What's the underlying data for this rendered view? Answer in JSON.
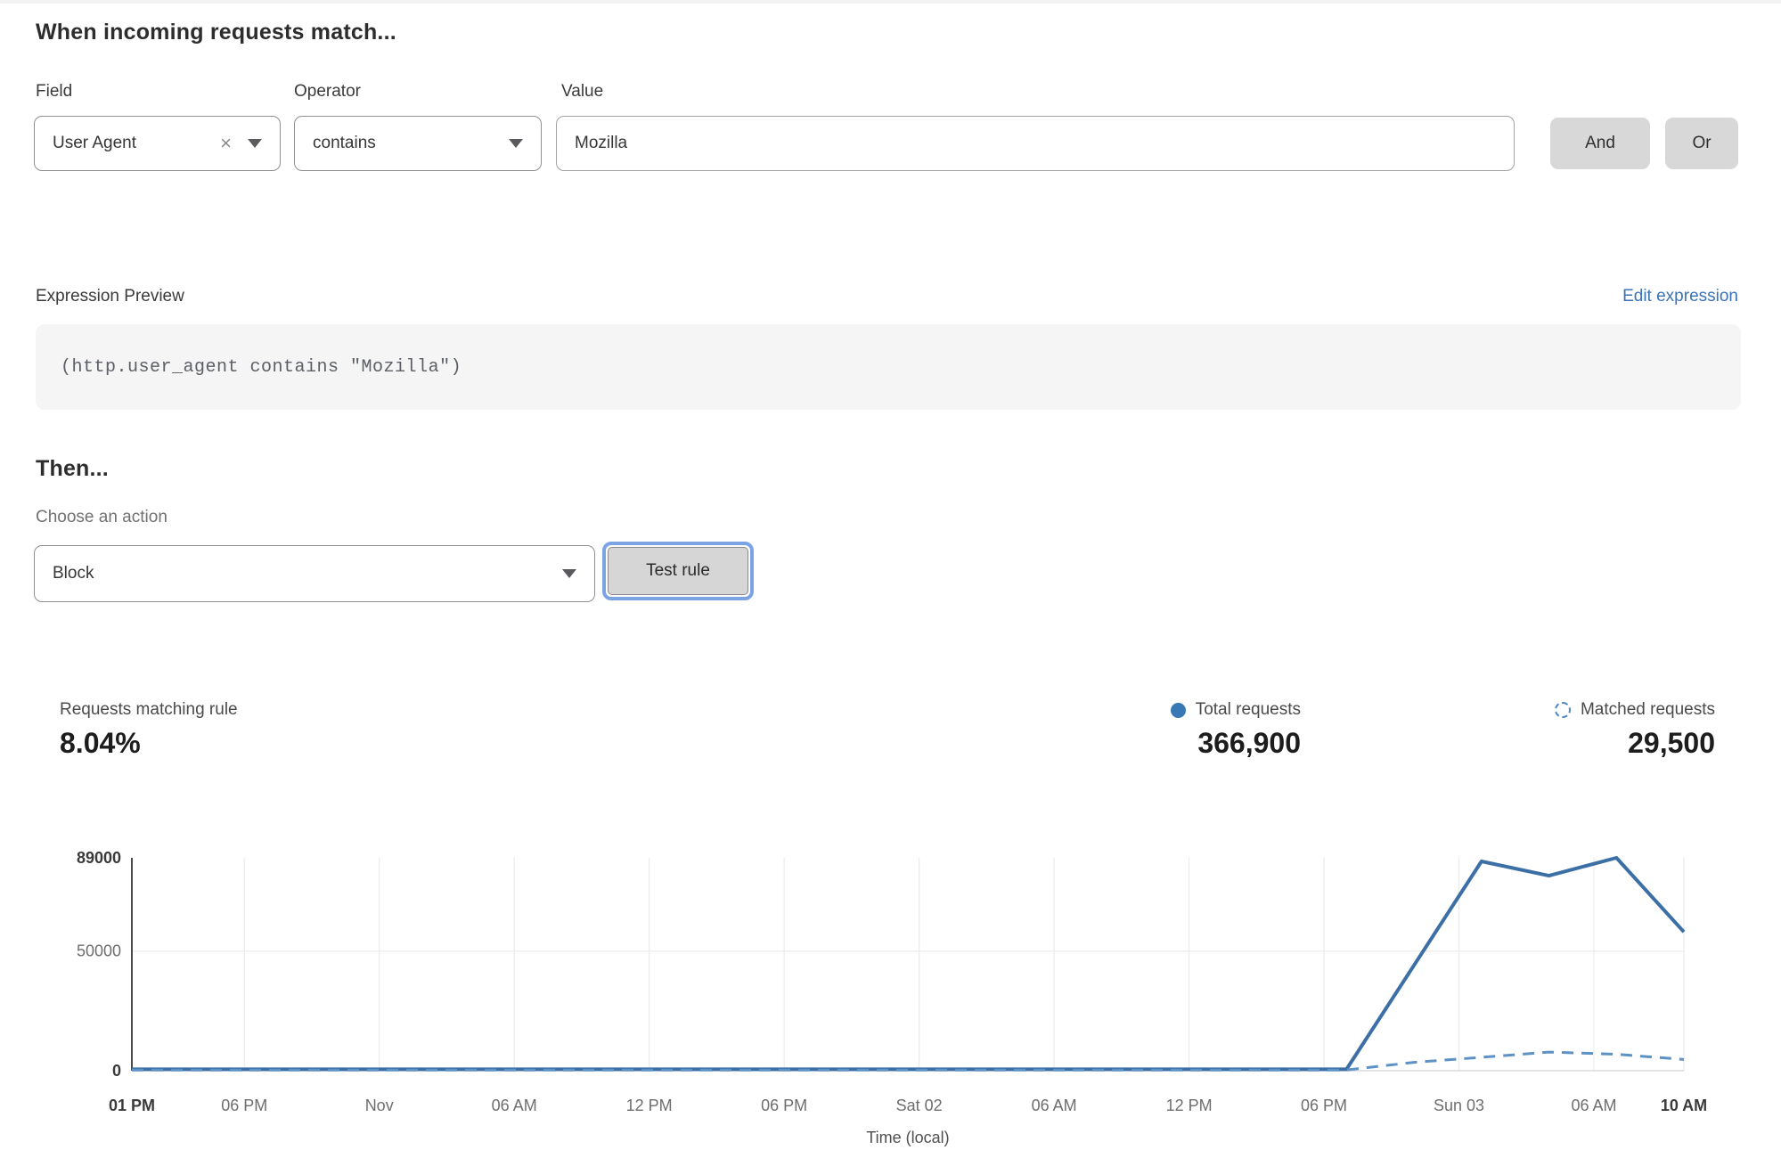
{
  "rule_builder": {
    "heading": "When incoming requests match...",
    "field": {
      "label": "Field",
      "value": "User Agent"
    },
    "operator": {
      "label": "Operator",
      "value": "contains"
    },
    "value": {
      "label": "Value",
      "value": "Mozilla"
    },
    "and_button": "And",
    "or_button": "Or",
    "icons": {
      "clear": "×"
    }
  },
  "expression_preview": {
    "label": "Expression Preview",
    "edit_link": "Edit expression",
    "code": "(http.user_agent contains \"Mozilla\")"
  },
  "action_section": {
    "heading": "Then...",
    "action_label": "Choose an action",
    "action_value": "Block",
    "test_button": "Test rule"
  },
  "stats": {
    "matching": {
      "label": "Requests matching rule",
      "value": "8.04%"
    },
    "total": {
      "label": "Total requests",
      "value": "366,900"
    },
    "matched": {
      "label": "Matched requests",
      "value": "29,500"
    }
  },
  "colors": {
    "accent_link": "#3b72b8",
    "focus_ring": "#7ca4e4",
    "legend_total_dot": "#3778b5",
    "legend_matched_circle": "#4d86c6",
    "series_total": "#3b6fa5",
    "series_matched": "#5d92c7"
  },
  "chart_data": {
    "type": "line",
    "title": "",
    "xlabel": "Time (local)",
    "ylabel": "",
    "ylim": [
      0,
      89000
    ],
    "x_total_hours": 69,
    "grid": "on",
    "y_ticks": [
      {
        "value": 0,
        "label": "0",
        "bold": true
      },
      {
        "value": 50000,
        "label": "50000",
        "bold": false
      },
      {
        "value": 89000,
        "label": "89000",
        "bold": true
      }
    ],
    "x_ticks": [
      {
        "hour": 0,
        "label": "01 PM",
        "bold": true
      },
      {
        "hour": 5,
        "label": "06 PM",
        "bold": false
      },
      {
        "hour": 11,
        "label": "Nov",
        "bold": false
      },
      {
        "hour": 17,
        "label": "06 AM",
        "bold": false
      },
      {
        "hour": 23,
        "label": "12 PM",
        "bold": false
      },
      {
        "hour": 29,
        "label": "06 PM",
        "bold": false
      },
      {
        "hour": 35,
        "label": "Sat 02",
        "bold": false
      },
      {
        "hour": 41,
        "label": "06 AM",
        "bold": false
      },
      {
        "hour": 47,
        "label": "12 PM",
        "bold": false
      },
      {
        "hour": 53,
        "label": "06 PM",
        "bold": false
      },
      {
        "hour": 59,
        "label": "Sun 03",
        "bold": false
      },
      {
        "hour": 65,
        "label": "06 AM",
        "bold": false
      },
      {
        "hour": 69,
        "label": "10 AM",
        "bold": true
      }
    ],
    "series": [
      {
        "name": "Total requests",
        "style": "solid",
        "color": "#3b6fa5",
        "points": [
          [
            0,
            600
          ],
          [
            6,
            600
          ],
          [
            12,
            600
          ],
          [
            18,
            600
          ],
          [
            24,
            600
          ],
          [
            30,
            600
          ],
          [
            36,
            600
          ],
          [
            42,
            600
          ],
          [
            48,
            600
          ],
          [
            54,
            600
          ],
          [
            57,
            44000
          ],
          [
            60,
            87500
          ],
          [
            63,
            81500
          ],
          [
            66,
            89000
          ],
          [
            69,
            58000
          ]
        ]
      },
      {
        "name": "Matched requests",
        "style": "dashed",
        "color": "#5d92c7",
        "points": [
          [
            0,
            300
          ],
          [
            6,
            300
          ],
          [
            12,
            300
          ],
          [
            18,
            300
          ],
          [
            24,
            300
          ],
          [
            30,
            300
          ],
          [
            36,
            300
          ],
          [
            42,
            300
          ],
          [
            48,
            300
          ],
          [
            54,
            300
          ],
          [
            57,
            3500
          ],
          [
            60,
            5600
          ],
          [
            63,
            7800
          ],
          [
            66,
            6900
          ],
          [
            69,
            4700
          ]
        ]
      }
    ],
    "legend_position": "top-right"
  }
}
